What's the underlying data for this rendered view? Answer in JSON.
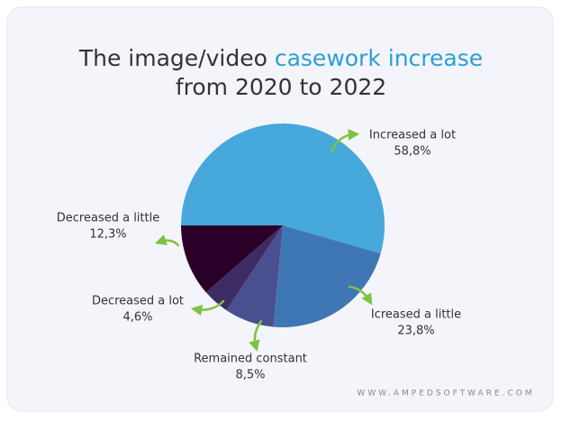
{
  "chart_data": {
    "type": "pie",
    "title_segments": [
      "The image/video",
      "casework increase",
      "from 2020 to 2022"
    ],
    "title_highlight_color": "#2b9fd6",
    "categories": [
      "Increased a lot",
      "Icreased a little",
      "Remained constant",
      "Decreased a lot",
      "Decreased a little"
    ],
    "values": [
      58.8,
      23.8,
      8.5,
      4.6,
      12.3
    ],
    "value_labels": [
      "58,8%",
      "23,8%",
      "8,5%",
      "4,6%",
      "12,3%"
    ],
    "colors": [
      "#47a8dc",
      "#3f77b4",
      "#4a4f8f",
      "#3d2c63",
      "#2b0028"
    ],
    "footer": "WWW.AMPEDSOFTWARE.COM"
  }
}
